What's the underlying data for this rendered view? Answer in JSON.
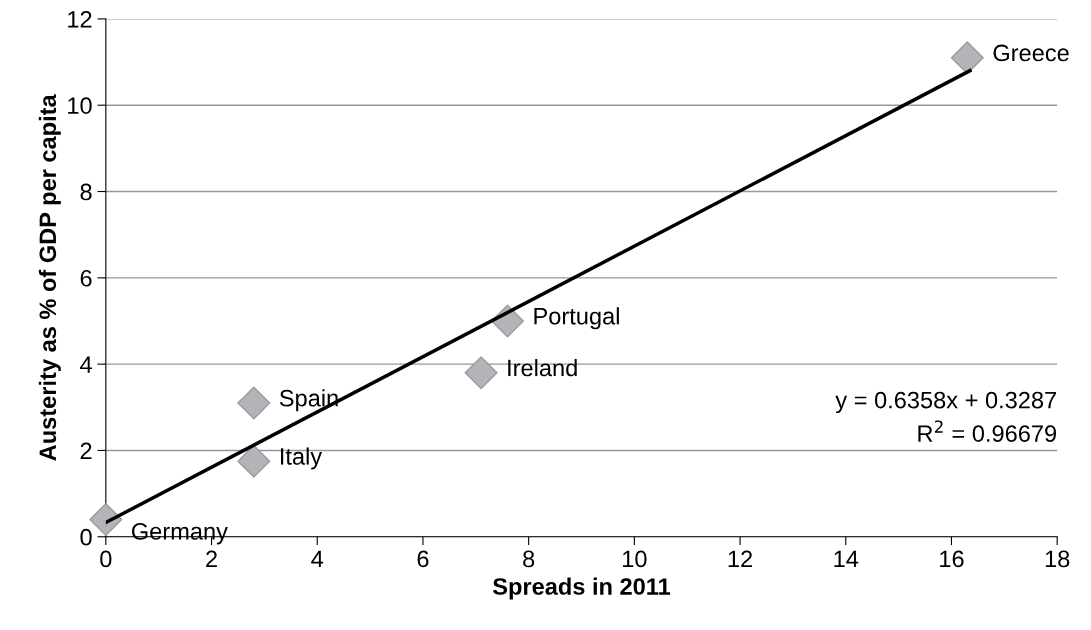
{
  "chart_data": {
    "type": "scatter",
    "xlabel": "Spreads in 2011",
    "ylabel": "Austerity as % of GDP per capita",
    "series": [
      {
        "color": "#b4b4b8",
        "x": [
          0,
          2.8,
          2.8,
          7.1,
          7.6,
          16.3
        ],
        "values": [
          0.4,
          1.75,
          3.1,
          3.8,
          5.0,
          11.1
        ],
        "marker": "diamond"
      },
      {
        "type": "line",
        "color": "#000000",
        "x": [
          0,
          16.35
        ],
        "values": [
          0.33,
          10.8
        ],
        "marker": "none",
        "line_style": "solid"
      }
    ],
    "annotations": [
      {
        "text": "Germany",
        "x": 0,
        "y": 0.4
      },
      {
        "text": "Italy",
        "x": 2.8,
        "y": 1.75
      },
      {
        "text": "Spain",
        "x": 2.8,
        "y": 3.1
      },
      {
        "text": "Ireland",
        "x": 7.1,
        "y": 3.8
      },
      {
        "text": "Portugal",
        "x": 7.6,
        "y": 5.0
      },
      {
        "text": "Greece",
        "x": 16.3,
        "y": 11.1
      },
      "y = 0.6358x + 0.3287",
      "R$^{2}$ = 0.96679"
    ],
    "xlim": [
      0,
      18
    ],
    "xticks": [
      0,
      2,
      4,
      6,
      8,
      10,
      12,
      14,
      16,
      18
    ],
    "ylim": [
      0,
      12
    ],
    "yticks": [
      0,
      2,
      4,
      6,
      8,
      10,
      12
    ],
    "grid": "y",
    "legend": false
  }
}
